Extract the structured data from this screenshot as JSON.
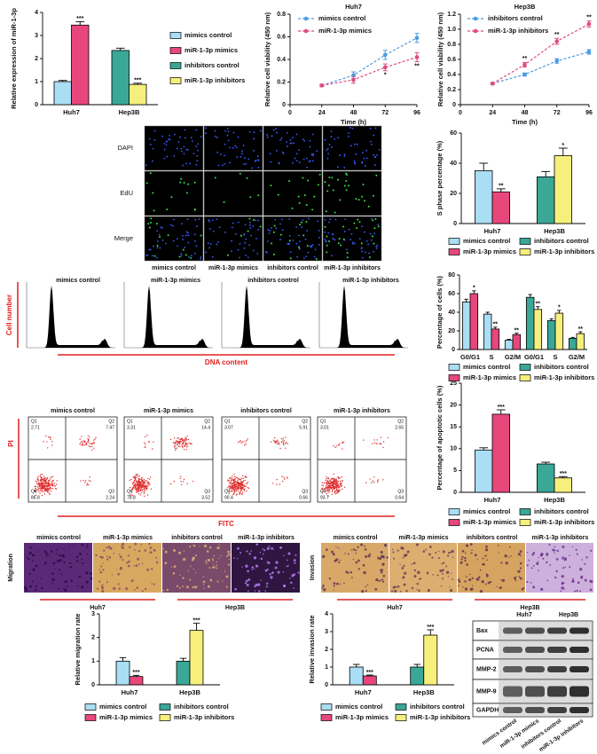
{
  "chart_data": [
    {
      "type": "bar",
      "ylabel": "Relative expression of miR-1-3p",
      "categories": [
        "Huh7",
        "Hep3B"
      ],
      "ylim": [
        0,
        4
      ],
      "yticks": [
        0,
        1,
        2,
        3,
        4
      ],
      "legend": "right",
      "series": [
        {
          "name": "mimics control",
          "color": "#a9def5",
          "values": [
            1.0,
            null
          ],
          "errors": [
            0.05,
            null
          ]
        },
        {
          "name": "miR-1-3p mimics",
          "color": "#e8477c",
          "values": [
            3.45,
            null
          ],
          "errors": [
            0.15,
            null
          ],
          "significance": [
            "***",
            null
          ]
        },
        {
          "name": "inhibitors control",
          "color": "#3aa797",
          "values": [
            null,
            2.35
          ],
          "errors": [
            null,
            0.1
          ]
        },
        {
          "name": "miR-1-3p inhibitors",
          "color": "#f6ef7c",
          "values": [
            null,
            0.88
          ],
          "errors": [
            null,
            0.05
          ],
          "significance": [
            null,
            "***"
          ]
        }
      ]
    },
    {
      "type": "line",
      "title": "Huh7",
      "ylabel": "Relative cell viability (450 nm)",
      "xlabel": "Time (h)",
      "x": [
        24,
        48,
        72,
        96
      ],
      "xlim": [
        0,
        96
      ],
      "xticks": [
        0,
        24,
        48,
        72,
        96
      ],
      "ylim": [
        0,
        0.8
      ],
      "yticks": [
        0,
        0.2,
        0.4,
        0.6,
        0.8
      ],
      "legend": "upper left",
      "series": [
        {
          "name": "mimics control",
          "color": "#4b9be0",
          "values": [
            0.17,
            0.26,
            0.44,
            0.59
          ],
          "errors": [
            0.01,
            0.03,
            0.04,
            0.04
          ]
        },
        {
          "name": "miR-1-3p mimics",
          "color": "#e04a7e",
          "values": [
            0.17,
            0.22,
            0.33,
            0.42
          ],
          "errors": [
            0.01,
            0.03,
            0.03,
            0.04
          ],
          "significance": [
            null,
            null,
            "*",
            "**"
          ]
        }
      ]
    },
    {
      "type": "line",
      "title": "Hep3B",
      "ylabel": "Relative cell viability (450 nm)",
      "xlabel": "Time (h)",
      "x": [
        24,
        48,
        72,
        96
      ],
      "xlim": [
        0,
        96
      ],
      "xticks": [
        0,
        24,
        48,
        72,
        96
      ],
      "ylim": [
        0,
        1.2
      ],
      "yticks": [
        0,
        0.2,
        0.4,
        0.6,
        0.8,
        {
          "value": 1,
          "label": "1.0"
        },
        1.2
      ],
      "legend": "upper left",
      "series": [
        {
          "name": "inhibitors control",
          "color": "#4b9be0",
          "values": [
            0.28,
            0.4,
            0.58,
            0.7
          ],
          "errors": [
            0.01,
            0.02,
            0.03,
            0.03
          ]
        },
        {
          "name": "miR-1-3p inhibitors",
          "color": "#e04a7e",
          "values": [
            0.28,
            0.53,
            0.84,
            1.07
          ],
          "errors": [
            0.01,
            0.03,
            0.04,
            0.04
          ],
          "significance": [
            null,
            "**",
            "**",
            "**"
          ]
        }
      ]
    },
    {
      "type": "bar",
      "ylabel": "S phase percentage (%)",
      "categories": [
        "Huh7",
        "Hep3B"
      ],
      "ylim": [
        0,
        60
      ],
      "yticks": [
        0,
        20,
        40,
        60
      ],
      "legend": "below",
      "series": [
        {
          "name": "mimics control",
          "color": "#a9def5",
          "values": [
            35,
            null
          ],
          "errors": [
            5,
            null
          ]
        },
        {
          "name": "miR-1-3p mimics",
          "color": "#e8477c",
          "values": [
            21,
            null
          ],
          "errors": [
            2,
            null
          ],
          "significance": [
            "**",
            null
          ]
        },
        {
          "name": "inhibitors control",
          "color": "#3aa797",
          "values": [
            null,
            31
          ],
          "errors": [
            null,
            3.5
          ]
        },
        {
          "name": "miR-1-3p inhibitors",
          "color": "#f6ef7c",
          "values": [
            null,
            45
          ],
          "errors": [
            null,
            5
          ],
          "significance": [
            null,
            "*"
          ]
        }
      ]
    },
    {
      "type": "bar",
      "ylabel": "Percentage of cells (%)",
      "categories": [
        "G0/G1",
        "S",
        "G2/M",
        "G0/G1",
        "S",
        "G2/M"
      ],
      "ylim": [
        0,
        80
      ],
      "yticks": [
        0,
        20,
        40,
        60,
        80
      ],
      "legend": "below",
      "series": [
        {
          "name": "mimics control",
          "color": "#a9def5",
          "values": [
            51,
            38,
            10,
            null,
            null,
            null
          ],
          "errors": [
            3,
            2,
            1,
            null,
            null,
            null
          ]
        },
        {
          "name": "miR-1-3p mimics",
          "color": "#e8477c",
          "values": [
            60,
            22,
            16,
            null,
            null,
            null
          ],
          "errors": [
            3,
            2,
            1.5,
            null,
            null,
            null
          ],
          "significance": [
            "*",
            "**",
            "**",
            null,
            null,
            null
          ]
        },
        {
          "name": "inhibitors control",
          "color": "#3aa797",
          "values": [
            null,
            null,
            null,
            56,
            31,
            12
          ],
          "errors": [
            null,
            null,
            null,
            3,
            2,
            1
          ]
        },
        {
          "name": "miR-1-3p inhibitors",
          "color": "#f6ef7c",
          "values": [
            null,
            null,
            null,
            43,
            39,
            17
          ],
          "errors": [
            null,
            null,
            null,
            3,
            3,
            2
          ],
          "significance": [
            null,
            null,
            null,
            "**",
            "*",
            "**"
          ]
        }
      ]
    },
    {
      "type": "bar",
      "ylabel": "Percentage of apoptotic cells (%)",
      "categories": [
        "Huh7",
        "Hep3B"
      ],
      "ylim": [
        0,
        25
      ],
      "yticks": [
        0,
        5,
        10,
        15,
        20,
        25
      ],
      "legend": "below",
      "series": [
        {
          "name": "mimics control",
          "color": "#a9def5",
          "values": [
            9.7,
            null
          ],
          "errors": [
            0.5,
            null
          ]
        },
        {
          "name": "miR-1-3p mimics",
          "color": "#e8477c",
          "values": [
            17.9,
            null
          ],
          "errors": [
            1,
            null
          ],
          "significance": [
            "***",
            null
          ]
        },
        {
          "name": "inhibitors control",
          "color": "#3aa797",
          "values": [
            null,
            6.5
          ],
          "errors": [
            null,
            0.4
          ]
        },
        {
          "name": "miR-1-3p inhibitors",
          "color": "#f6ef7c",
          "values": [
            null,
            3.3
          ],
          "errors": [
            null,
            0.3
          ],
          "significance": [
            null,
            "***"
          ]
        }
      ]
    },
    {
      "type": "bar",
      "ylabel": "Relative migration rate",
      "categories": [
        "Huh7",
        "Hep3B"
      ],
      "ylim": [
        0,
        3
      ],
      "yticks": [
        0,
        1,
        2,
        3
      ],
      "legend": "below",
      "series": [
        {
          "name": "mimics control",
          "color": "#a9def5",
          "values": [
            1.0,
            null
          ],
          "errors": [
            0.15,
            null
          ]
        },
        {
          "name": "miR-1-3p mimics",
          "color": "#e8477c",
          "values": [
            0.35,
            null
          ],
          "errors": [
            0.05,
            null
          ],
          "significance": [
            "***",
            null
          ]
        },
        {
          "name": "inhibitors control",
          "color": "#3aa797",
          "values": [
            null,
            1.0
          ],
          "errors": [
            null,
            0.12
          ]
        },
        {
          "name": "miR-1-3p inhibitors",
          "color": "#f6ef7c",
          "values": [
            null,
            2.3
          ],
          "errors": [
            null,
            0.3
          ],
          "significance": [
            null,
            "***"
          ]
        }
      ]
    },
    {
      "type": "bar",
      "ylabel": "Relative invasion rate",
      "categories": [
        "Huh7",
        "Hep3B"
      ],
      "ylim": [
        0,
        4
      ],
      "yticks": [
        0,
        1,
        2,
        3,
        4
      ],
      "legend": "below",
      "series": [
        {
          "name": "mimics control",
          "color": "#a9def5",
          "values": [
            1.0,
            null
          ],
          "errors": [
            0.15,
            null
          ]
        },
        {
          "name": "miR-1-3p mimics",
          "color": "#e8477c",
          "values": [
            0.5,
            null
          ],
          "errors": [
            0.05,
            null
          ],
          "significance": [
            "***",
            null
          ]
        },
        {
          "name": "inhibitors control",
          "color": "#3aa797",
          "values": [
            null,
            1.0
          ],
          "errors": [
            null,
            0.15
          ]
        },
        {
          "name": "miR-1-3p inhibitors",
          "color": "#f6ef7c",
          "values": [
            null,
            2.8
          ],
          "errors": [
            null,
            0.3
          ],
          "significance": [
            null,
            "***"
          ]
        }
      ]
    }
  ],
  "edu_staining": {
    "rows": [
      "DAPI",
      "EdU",
      "Merge"
    ],
    "columns": [
      "mimics control",
      "miR-1-3p mimics",
      "inhibitors control",
      "miR-1-3p inhibitors"
    ]
  },
  "cell_cycle": {
    "titles": [
      "mimics control",
      "miR-1-3p mimics",
      "inhibitors control",
      "miR-1-3p inhibitors"
    ],
    "ylabel": "Cell number",
    "xlabel": "DNA content"
  },
  "apoptosis_flow": {
    "ylabel": "PI",
    "xlabel": "FITC",
    "plots": [
      {
        "title": "mimics control",
        "quadrants": [
          {
            "label": "Q1",
            "value": 2.71
          },
          {
            "label": "Q2",
            "value": 7.47
          },
          {
            "label": "Q4",
            "value": 86.8
          },
          {
            "label": "Q3",
            "value": 2.24
          }
        ]
      },
      {
        "title": "miR-1-3p mimics",
        "quadrants": [
          {
            "label": "Q1",
            "value": 3.31
          },
          {
            "label": "Q2",
            "value": 14.4
          },
          {
            "label": "Q4",
            "value": 78.8
          },
          {
            "label": "Q3",
            "value": 3.52
          }
        ]
      },
      {
        "title": "inhibitors control",
        "quadrants": [
          {
            "label": "Q1",
            "value": 3.07
          },
          {
            "label": "Q2",
            "value": 5.91
          },
          {
            "label": "Q4",
            "value": 90.4
          },
          {
            "label": "Q3",
            "value": 0.66
          }
        ]
      },
      {
        "title": "miR-1-3p inhibitors",
        "quadrants": [
          {
            "label": "Q1",
            "value": 3.01
          },
          {
            "label": "Q2",
            "value": 2.65
          },
          {
            "label": "Q4",
            "value": 93.7
          },
          {
            "label": "Q3",
            "value": 0.64
          }
        ]
      }
    ]
  },
  "migration": {
    "label": "Migration",
    "titles": [
      "mimics control",
      "miR-1-3p mimics",
      "inhibitors control",
      "miR-1-3p inhibitors"
    ],
    "groups": [
      "Huh7",
      "Hep3B"
    ]
  },
  "invasion": {
    "label": "Invasion",
    "titles": [
      "mimics control",
      "miR-1-3p mimics",
      "inhibitors control",
      "miR-1-3p inhibitors"
    ],
    "groups": [
      "Huh7",
      "Hep3B"
    ]
  },
  "western_blot": {
    "cell_lines": [
      "Huh7",
      "Hep3B"
    ],
    "proteins": [
      "Bax",
      "PCNA",
      "MMP-2",
      "MMP-9",
      "GAPDH"
    ],
    "lanes": [
      "mimics control",
      "miR-1-3p mimics",
      "inhibitors control",
      "miR-1-3p inhibitors"
    ]
  }
}
